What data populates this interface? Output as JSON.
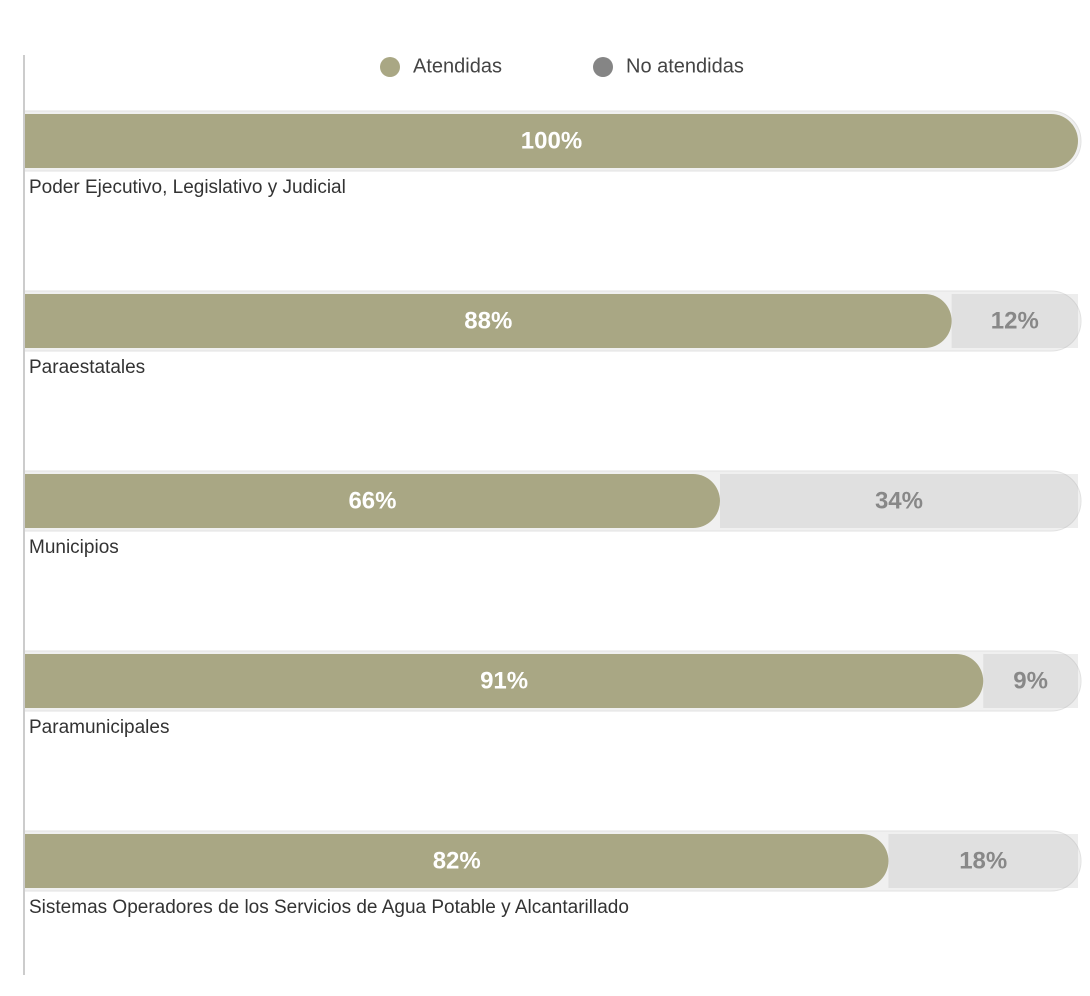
{
  "chart_data": {
    "type": "stacked-bar-horizontal",
    "categories": [
      "Poder Ejecutivo, Legislativo y Judicial",
      "Paraestatales",
      "Municipios",
      "Paramunicipales",
      "Sistemas Operadores de los Servicios de Agua Potable y Alcantarillado"
    ],
    "series": [
      {
        "name": "Atendidas",
        "color": "#a9a784",
        "values": [
          100,
          88,
          66,
          91,
          82
        ],
        "value_labels": [
          "100%",
          "88%",
          "66%",
          "91%",
          "82%"
        ]
      },
      {
        "name": "No atendidas",
        "color": "#858585",
        "values": [
          0,
          12,
          34,
          9,
          18
        ],
        "value_labels": [
          null,
          "12%",
          "34%",
          "9%",
          "18%"
        ]
      }
    ],
    "xlim": [
      0,
      100
    ]
  }
}
